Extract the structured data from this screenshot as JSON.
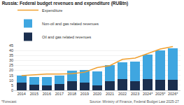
{
  "chart_data": {
    "type": "bar",
    "title": "Russia: Federal budget revenues and expenditure (RUBtn)",
    "categories": [
      "2014",
      "2015",
      "2016",
      "2017",
      "2018",
      "2019",
      "2020",
      "2021",
      "2022",
      "2023",
      "2024*",
      "2025*",
      "2026*"
    ],
    "stacked": true,
    "grid": true,
    "legend": "top-left",
    "series": [
      {
        "name": "Oil and gas related revenues",
        "type": "bar",
        "color": "#1b2f4f",
        "values": [
          7.4,
          5.9,
          4.8,
          6.0,
          9.0,
          7.9,
          5.2,
          9.1,
          11.6,
          8.8,
          11.3,
          10.9,
          10.9
        ]
      },
      {
        "name": "Non-oil and gas related revenues",
        "type": "bar",
        "color": "#3fa6e0",
        "values": [
          7.1,
          7.8,
          8.7,
          9.1,
          10.5,
          12.3,
          13.5,
          16.2,
          16.2,
          20.3,
          24.8,
          29.4,
          31.1
        ]
      },
      {
        "name": "Expenditure",
        "type": "line",
        "color": "#f0a030",
        "values": [
          14.8,
          15.6,
          16.4,
          16.4,
          16.7,
          18.2,
          22.8,
          24.8,
          31.1,
          32.4,
          36.7,
          41.5,
          44.0
        ]
      }
    ],
    "ylim": [
      0,
      45
    ],
    "yticks": [
      0,
      5,
      10,
      15,
      20,
      25,
      30,
      35,
      40,
      45
    ],
    "annotations": [
      "*Forecast",
      "Source: Ministry of Finance, Federal Budget Law 2025-27"
    ]
  }
}
